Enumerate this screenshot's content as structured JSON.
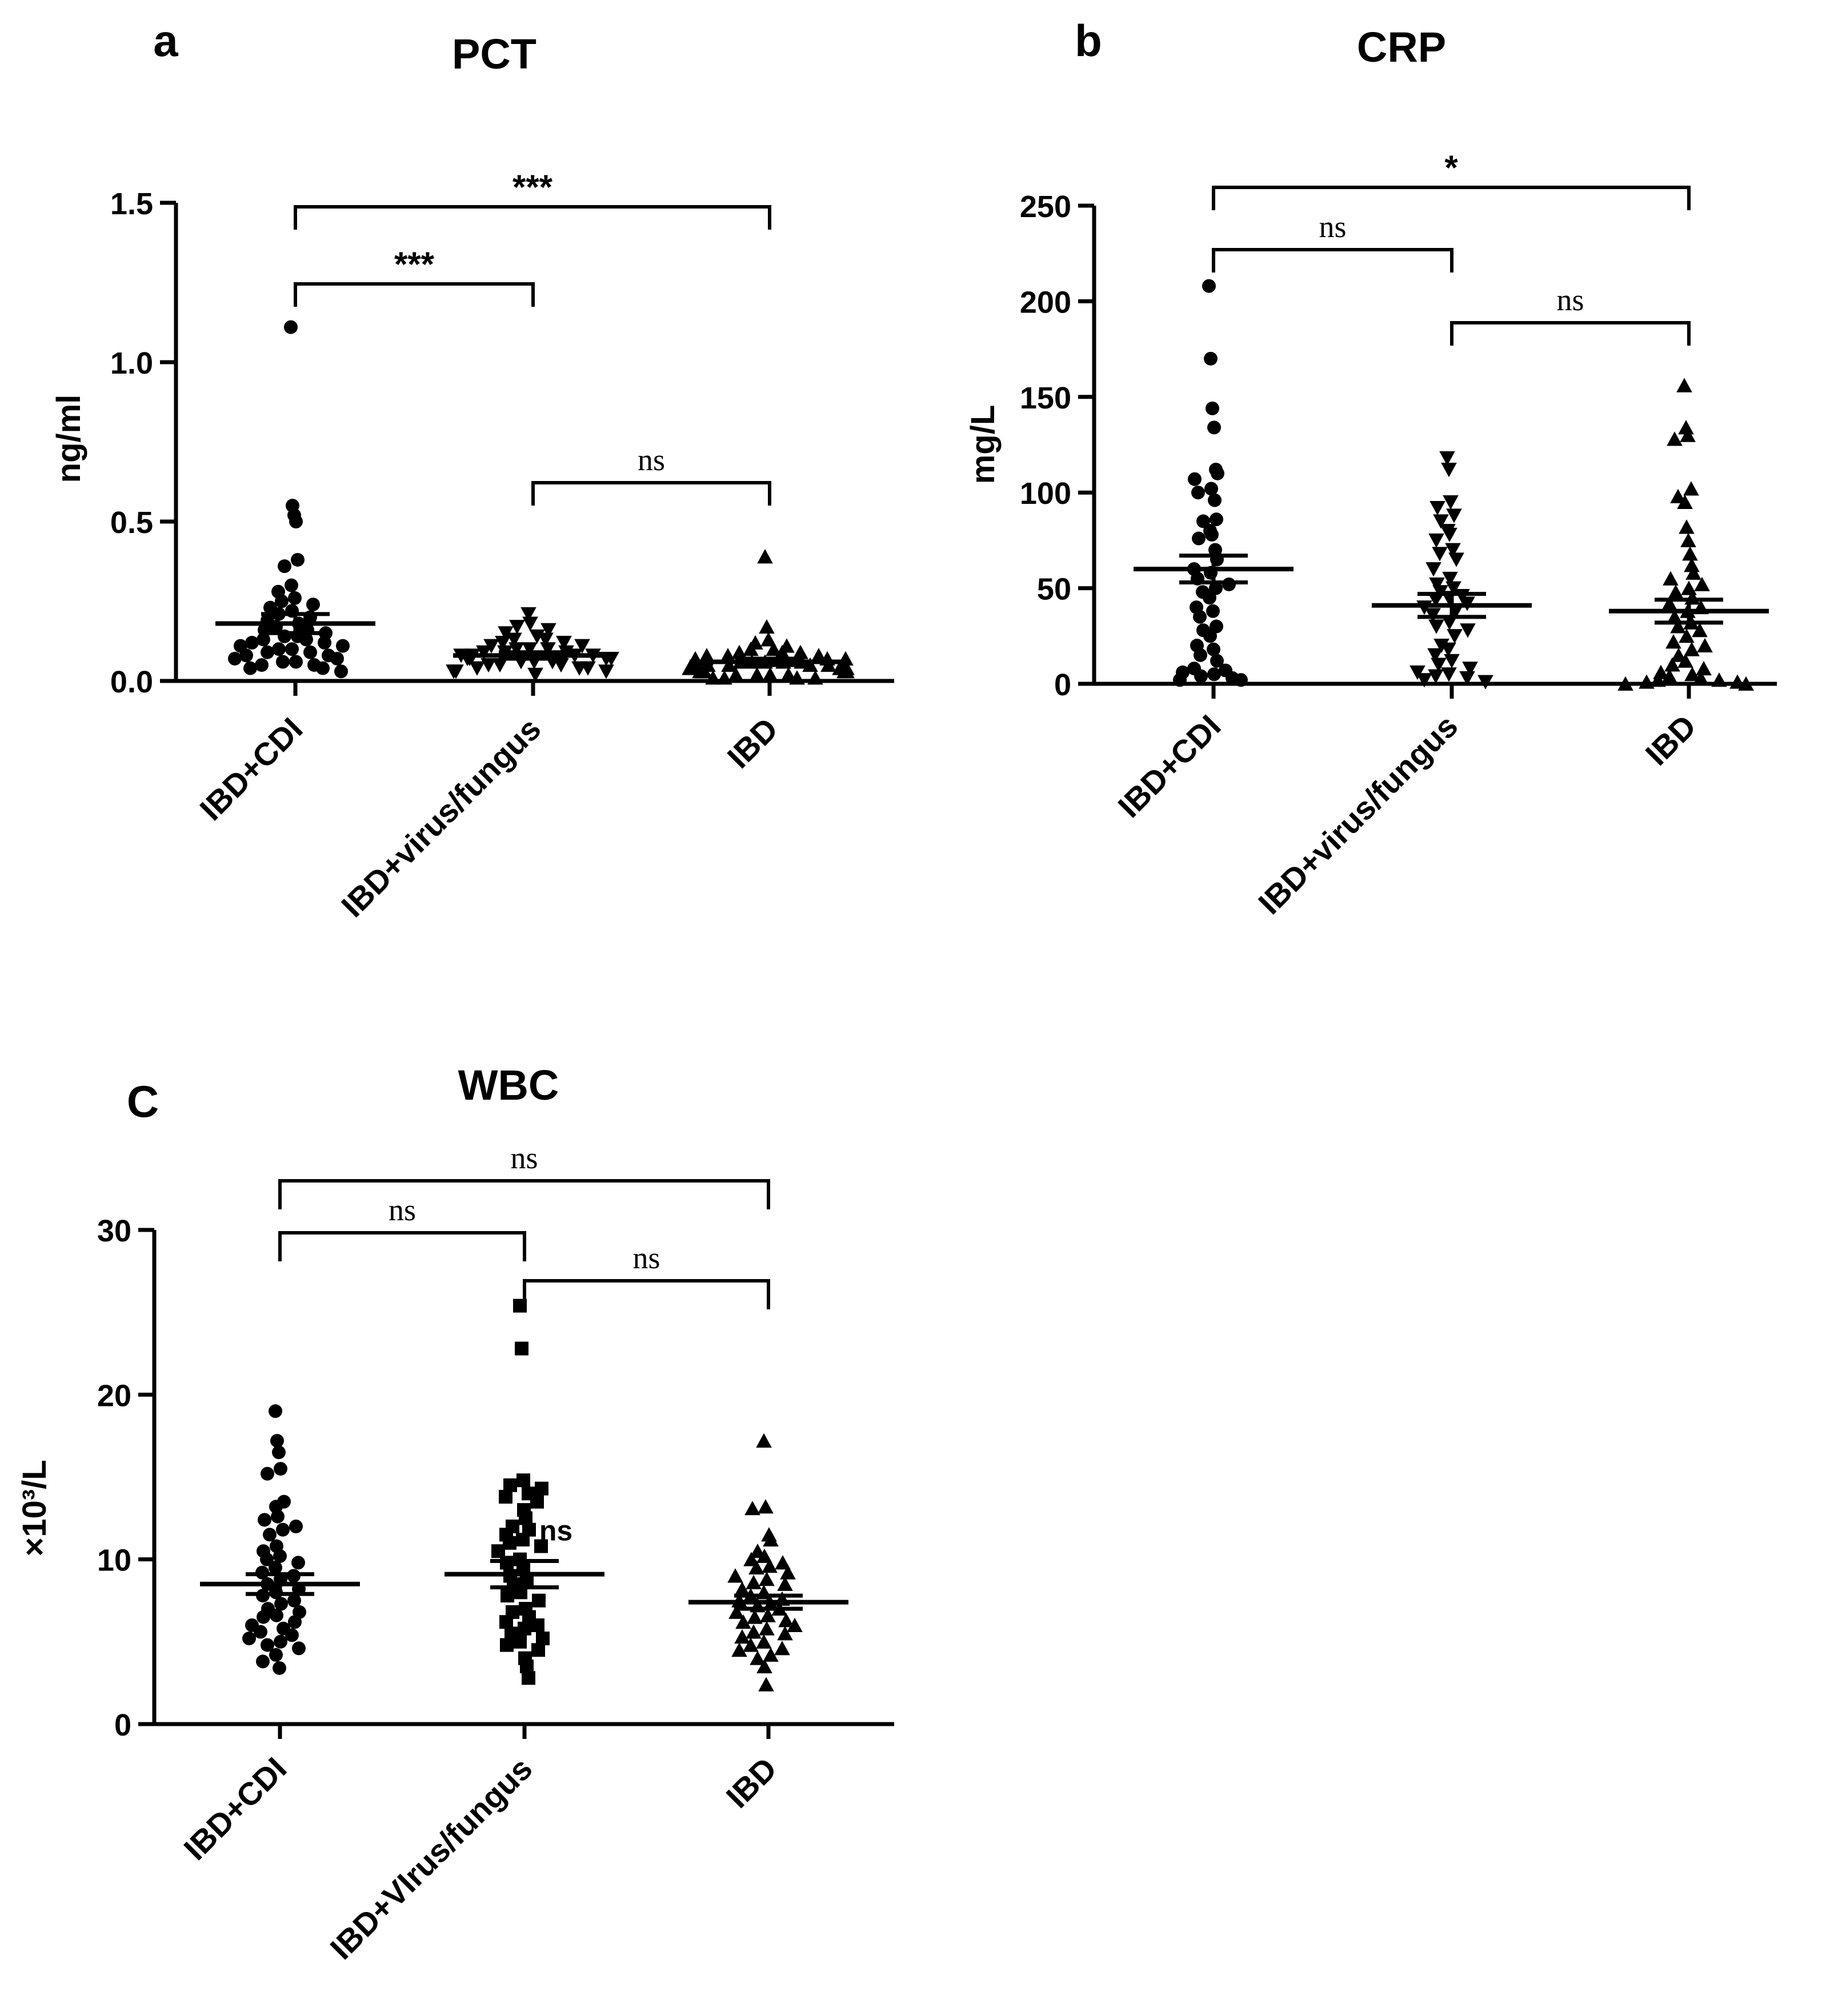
{
  "chart_data": [
    {
      "panel_label": "a",
      "type": "scatter",
      "title": "PCT",
      "xlabel": "",
      "ylabel": "ng/ml",
      "ylim": [
        0,
        1.5
      ],
      "yticks": [
        "0.0",
        "0.5",
        "1.0",
        "1.5"
      ],
      "categories": [
        "IBD+CDI",
        "IBD+virus/fungus",
        "IBD"
      ],
      "markers": [
        "circle",
        "triangle-down",
        "triangle-up"
      ],
      "series": [
        {
          "name": "IBD+CDI",
          "mean": 0.18,
          "sem": 0.03,
          "values": [
            1.11,
            0.55,
            0.52,
            0.5,
            0.38,
            0.36,
            0.3,
            0.28,
            0.26,
            0.25,
            0.24,
            0.23,
            0.22,
            0.21,
            0.2,
            0.19,
            0.18,
            0.17,
            0.16,
            0.16,
            0.15,
            0.14,
            0.14,
            0.13,
            0.13,
            0.12,
            0.12,
            0.11,
            0.11,
            0.1,
            0.1,
            0.09,
            0.09,
            0.08,
            0.08,
            0.07,
            0.07,
            0.06,
            0.06,
            0.05,
            0.05,
            0.04,
            0.04,
            0.03
          ]
        },
        {
          "name": "IBD+virus/fungus",
          "mean": 0.08,
          "sem": 0.01,
          "values": [
            0.21,
            0.18,
            0.17,
            0.16,
            0.15,
            0.14,
            0.13,
            0.13,
            0.12,
            0.12,
            0.11,
            0.11,
            0.1,
            0.1,
            0.1,
            0.09,
            0.09,
            0.09,
            0.08,
            0.08,
            0.08,
            0.08,
            0.07,
            0.07,
            0.07,
            0.07,
            0.06,
            0.06,
            0.06,
            0.05,
            0.05,
            0.05,
            0.04,
            0.04,
            0.04,
            0.03,
            0.03,
            0.03,
            0.02
          ]
        },
        {
          "name": "IBD",
          "mean": 0.06,
          "sem": 0.01,
          "values": [
            0.39,
            0.17,
            0.13,
            0.12,
            0.11,
            0.1,
            0.1,
            0.09,
            0.09,
            0.09,
            0.08,
            0.08,
            0.08,
            0.07,
            0.07,
            0.07,
            0.07,
            0.06,
            0.06,
            0.06,
            0.06,
            0.06,
            0.05,
            0.05,
            0.05,
            0.05,
            0.05,
            0.04,
            0.04,
            0.04,
            0.04,
            0.04,
            0.03,
            0.03,
            0.03,
            0.03,
            0.03,
            0.02,
            0.02,
            0.02,
            0.02,
            0.01,
            0.01,
            0.01,
            0.01
          ]
        }
      ],
      "comparisons": [
        {
          "from": 0,
          "to": 2,
          "label": "***"
        },
        {
          "from": 0,
          "to": 1,
          "label": "***"
        },
        {
          "from": 1,
          "to": 2,
          "label": "ns"
        }
      ]
    },
    {
      "panel_label": "b",
      "type": "scatter",
      "title": "CRP",
      "xlabel": "",
      "ylabel": "mg/L",
      "ylim": [
        0,
        250
      ],
      "yticks": [
        "0",
        "50",
        "100",
        "150",
        "200",
        "250"
      ],
      "categories": [
        "IBD+CDI",
        "IBD+virus/fungus",
        "IBD"
      ],
      "markers": [
        "circle",
        "triangle-down",
        "triangle-up"
      ],
      "series": [
        {
          "name": "IBD+CDI",
          "mean": 60,
          "sem": 7,
          "values": [
            208,
            170,
            144,
            134,
            112,
            110,
            107,
            102,
            100,
            96,
            86,
            85,
            80,
            78,
            76,
            70,
            65,
            60,
            58,
            55,
            52,
            50,
            48,
            45,
            40,
            38,
            35,
            30,
            28,
            25,
            20,
            18,
            15,
            12,
            8,
            7,
            6,
            5,
            4,
            3,
            2,
            2
          ]
        },
        {
          "name": "IBD+virus/fungus",
          "mean": 41,
          "sem": 6,
          "values": [
            118,
            112,
            95,
            92,
            88,
            85,
            80,
            78,
            75,
            70,
            68,
            65,
            60,
            55,
            52,
            50,
            48,
            46,
            45,
            44,
            42,
            40,
            38,
            36,
            32,
            30,
            28,
            25,
            20,
            18,
            15,
            12,
            10,
            8,
            6,
            5,
            4,
            3,
            2,
            1
          ]
        },
        {
          "name": "IBD",
          "mean": 38,
          "sem": 6,
          "values": [
            156,
            134,
            130,
            128,
            102,
            98,
            95,
            82,
            75,
            68,
            62,
            58,
            55,
            52,
            50,
            48,
            45,
            42,
            40,
            38,
            35,
            32,
            30,
            28,
            25,
            22,
            20,
            18,
            15,
            12,
            10,
            8,
            6,
            5,
            4,
            3,
            2,
            2,
            1,
            1,
            0,
            0
          ]
        }
      ],
      "comparisons": [
        {
          "from": 0,
          "to": 2,
          "label": "*"
        },
        {
          "from": 0,
          "to": 1,
          "label": "ns"
        },
        {
          "from": 1,
          "to": 2,
          "label": "ns"
        }
      ]
    },
    {
      "panel_label": "C",
      "type": "scatter",
      "title": "WBC",
      "xlabel": "",
      "ylabel": "×10³/L",
      "ylim": [
        0,
        30
      ],
      "yticks": [
        "0",
        "10",
        "20",
        "30"
      ],
      "categories": [
        "IBD+CDI",
        "IBD+VIrus/fungus",
        "IBD"
      ],
      "markers": [
        "circle",
        "square",
        "triangle-up"
      ],
      "series": [
        {
          "name": "IBD+CDI",
          "mean": 8.5,
          "sem": 0.6,
          "values": [
            19.0,
            17.2,
            16.5,
            15.5,
            15.2,
            13.5,
            13.2,
            12.6,
            12.4,
            12.0,
            11.8,
            11.5,
            10.8,
            10.5,
            10.2,
            10.0,
            9.8,
            9.5,
            9.2,
            9.0,
            8.8,
            8.5,
            8.2,
            8.0,
            7.8,
            7.5,
            7.3,
            7.0,
            6.8,
            6.6,
            6.5,
            6.2,
            6.0,
            5.8,
            5.6,
            5.4,
            5.2,
            5.0,
            4.8,
            4.6,
            4.2,
            3.8,
            3.4
          ]
        },
        {
          "name": "IBD+VIrus/fungus",
          "mean": 9.1,
          "sem": 0.8,
          "values": [
            25.4,
            22.8,
            14.8,
            14.5,
            14.3,
            14.0,
            13.8,
            13.5,
            13.0,
            12.5,
            12.0,
            11.8,
            11.5,
            11.2,
            11.0,
            10.8,
            10.5,
            10.0,
            9.8,
            9.5,
            9.0,
            8.8,
            8.5,
            8.0,
            7.8,
            7.5,
            7.0,
            6.8,
            6.5,
            6.2,
            6.0,
            5.8,
            5.5,
            5.2,
            5.0,
            4.8,
            4.5,
            4.0,
            3.5,
            2.8
          ]
        },
        {
          "name": "IBD",
          "mean": 7.4,
          "sem": 0.4,
          "values": [
            17.2,
            13.2,
            13.1,
            11.5,
            11.2,
            10.5,
            10.2,
            10.0,
            9.8,
            9.6,
            9.5,
            9.2,
            9.0,
            8.8,
            8.6,
            8.5,
            8.2,
            8.0,
            7.8,
            7.6,
            7.5,
            7.3,
            7.2,
            7.0,
            6.8,
            6.6,
            6.5,
            6.3,
            6.2,
            6.0,
            5.8,
            5.6,
            5.5,
            5.3,
            5.0,
            4.8,
            4.6,
            4.5,
            4.2,
            4.0,
            3.5,
            2.4
          ]
        }
      ],
      "comparisons": [
        {
          "from": 0,
          "to": 2,
          "label": "ns"
        },
        {
          "from": 0,
          "to": 1,
          "label": "ns"
        },
        {
          "from": 1,
          "to": 2,
          "label": "ns"
        }
      ],
      "annotations": [
        {
          "text": "ns",
          "category": 1,
          "y": 11.5
        }
      ]
    }
  ]
}
